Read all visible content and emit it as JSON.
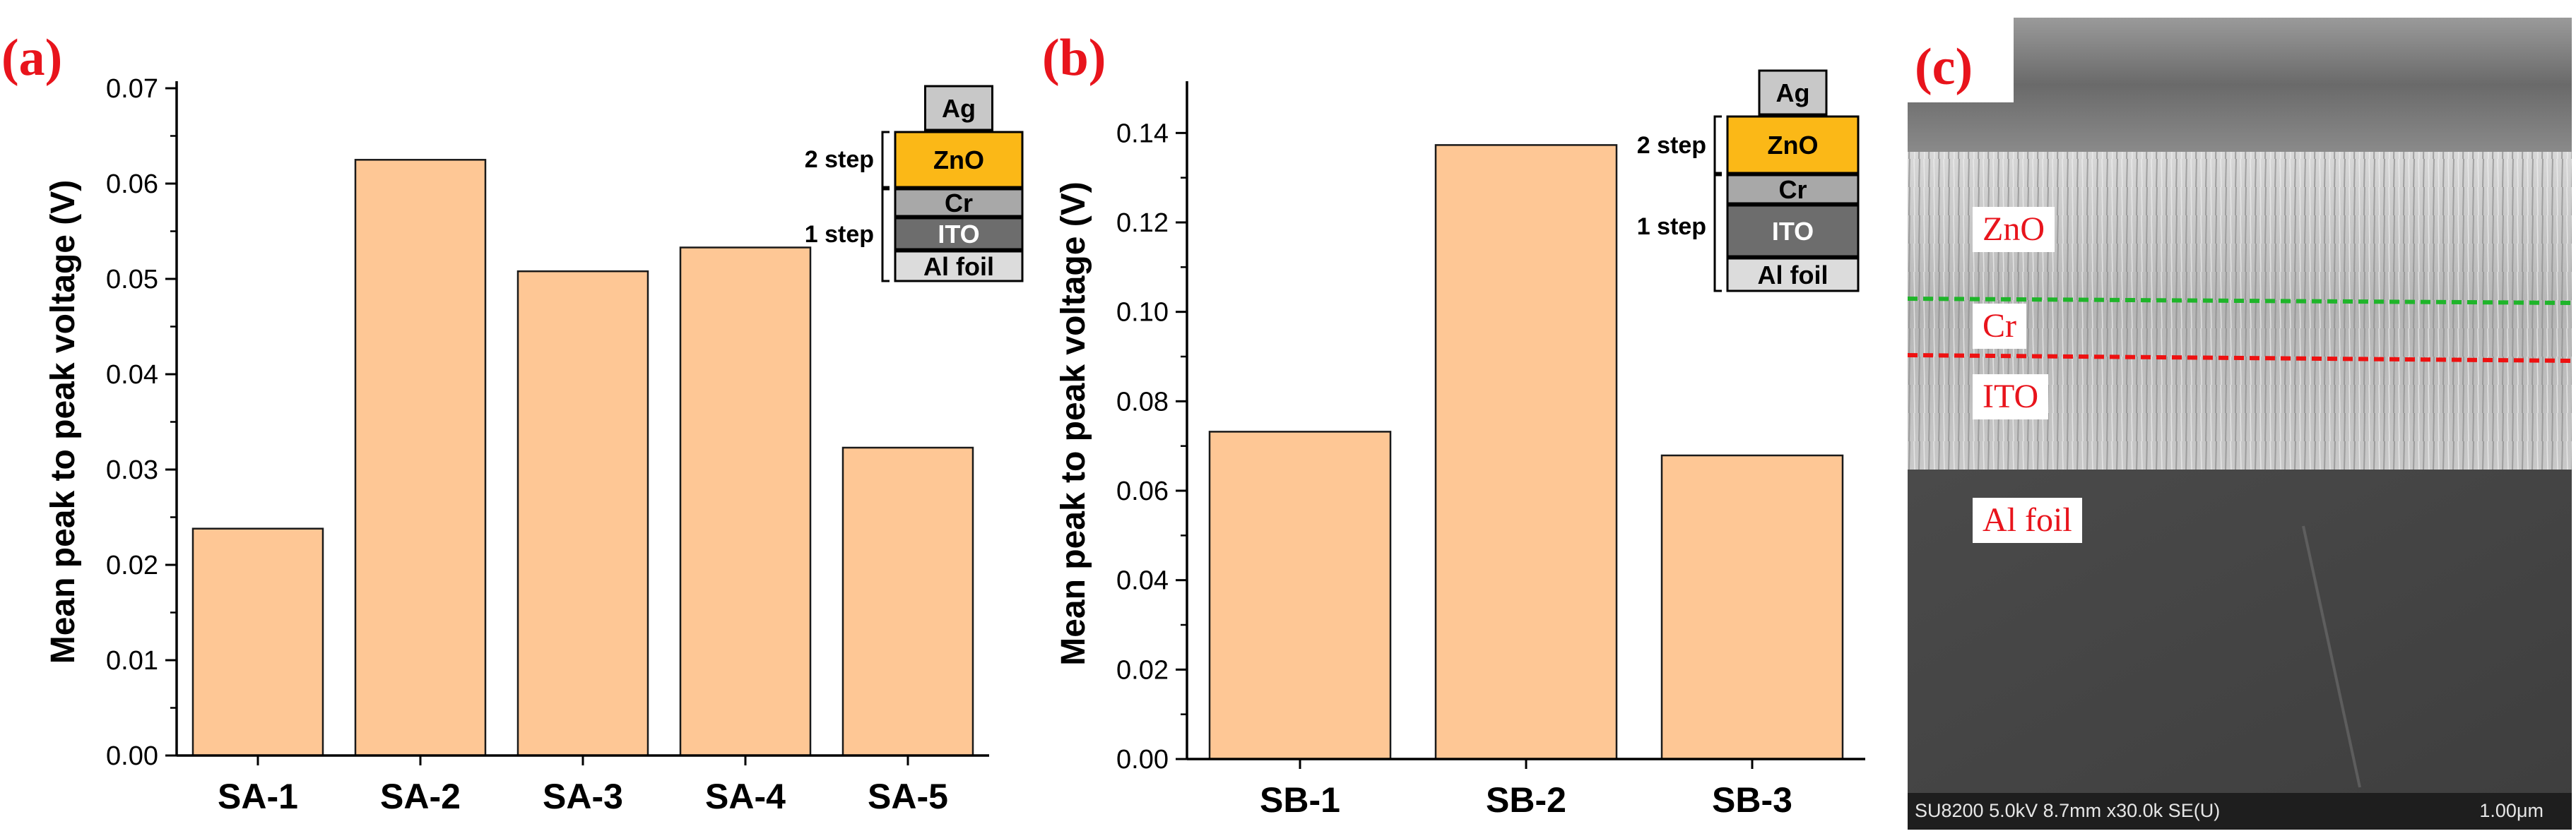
{
  "colors": {
    "bar": "#fec795",
    "bar_edge": "#1a1a1a",
    "panel_label": "#e8141c",
    "layer_ag": "#c8c8c8",
    "layer_zno": "#fbb817",
    "layer_cr": "#a8a8a8",
    "layer_ito": "#6d6d6d",
    "layer_al": "#dcdcdc",
    "sem_green_line": "#1fb52a",
    "sem_red_line": "#ee1111"
  },
  "panels": {
    "a": "(a)",
    "b": "(b)",
    "c": "(c)"
  },
  "stack_inset": {
    "ag": "Ag",
    "zno": "ZnO",
    "cr": "Cr",
    "ito": "ITO",
    "al": "Al foil",
    "step2": "2 step",
    "step1": "1 step"
  },
  "chart_data": [
    {
      "type": "bar",
      "title": "",
      "categories": [
        "SA-1",
        "SA-2",
        "SA-3",
        "SA-4",
        "SA-5"
      ],
      "values": [
        0.0238,
        0.0625,
        0.0508,
        0.0533,
        0.0323
      ],
      "xlabel": "",
      "ylabel": "Mean peak to peak voltage (V)",
      "ylim": [
        0,
        0.07
      ],
      "yticks": [
        "0.00",
        "0.01",
        "0.02",
        "0.03",
        "0.04",
        "0.05",
        "0.06",
        "0.07"
      ],
      "grid": false
    },
    {
      "type": "bar",
      "title": "",
      "categories": [
        "SB-1",
        "SB-2",
        "SB-3"
      ],
      "values": [
        0.0732,
        0.1373,
        0.0679
      ],
      "xlabel": "",
      "ylabel": "Mean peak to peak voltage (V)",
      "ylim": [
        0,
        0.15
      ],
      "yticks": [
        "0.00",
        "0.02",
        "0.04",
        "0.06",
        "0.08",
        "0.10",
        "0.12",
        "0.14"
      ],
      "grid": false
    }
  ],
  "sem": {
    "labels": {
      "zno": "ZnO",
      "cr": "Cr",
      "ito": "ITO",
      "al": "Al foil"
    },
    "info": "SU8200 5.0kV 8.7mm x30.0k SE(U)",
    "scale": "1.00μm"
  }
}
